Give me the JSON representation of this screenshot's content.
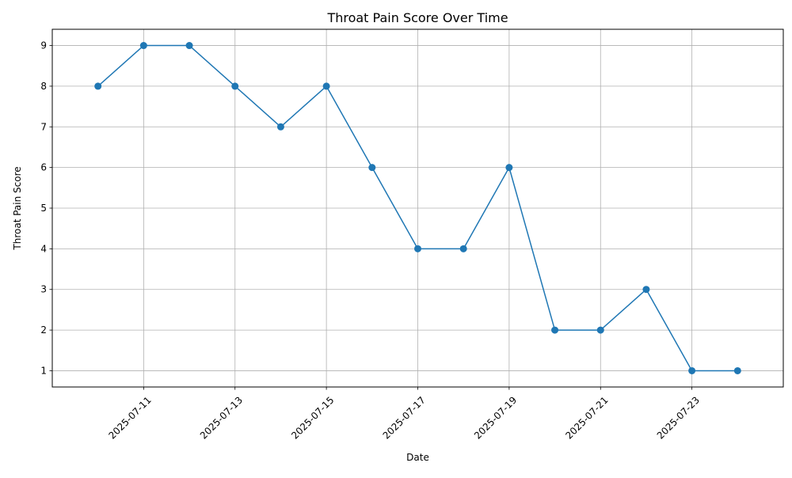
{
  "chart_data": {
    "type": "line",
    "title": "Throat Pain Score Over Time",
    "xlabel": "Date",
    "ylabel": "Throat Pain Score",
    "x": [
      "2025-07-10",
      "2025-07-11",
      "2025-07-12",
      "2025-07-13",
      "2025-07-14",
      "2025-07-15",
      "2025-07-16",
      "2025-07-17",
      "2025-07-18",
      "2025-07-19",
      "2025-07-20",
      "2025-07-21",
      "2025-07-22",
      "2025-07-23",
      "2025-07-24"
    ],
    "series": [
      {
        "values": [
          8,
          9,
          9,
          8,
          7,
          8,
          6,
          4,
          4,
          6,
          2,
          2,
          3,
          1,
          1
        ],
        "color": "#1f77b4",
        "marker": "circle"
      }
    ],
    "xlim": [
      "2025-07-09",
      "2025-07-25"
    ],
    "ylim": [
      0.6,
      9.4
    ],
    "x_ticks": [
      "2025-07-11",
      "2025-07-13",
      "2025-07-15",
      "2025-07-17",
      "2025-07-19",
      "2025-07-21",
      "2025-07-23"
    ],
    "y_ticks": [
      "1",
      "2",
      "3",
      "4",
      "5",
      "6",
      "7",
      "8",
      "9"
    ],
    "grid": true,
    "colors": {
      "line": "#1f77b4",
      "grid": "#b0b0b0",
      "axes": "#000000"
    }
  }
}
